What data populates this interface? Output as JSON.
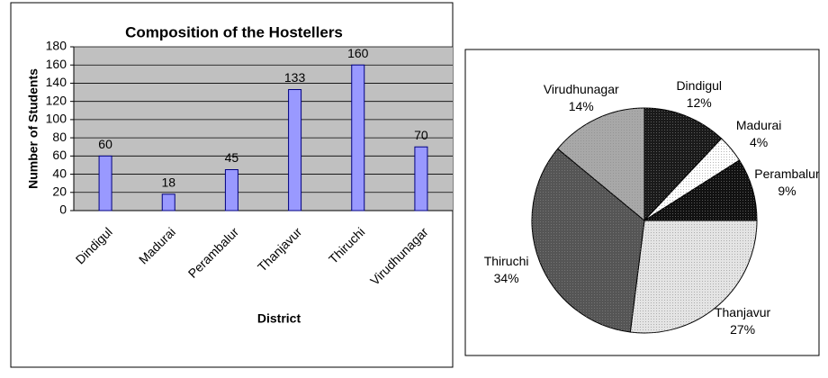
{
  "chart_data": [
    {
      "type": "bar",
      "title": "Composition of the Hostellers",
      "x_label": "District",
      "y_label": "Number of Students",
      "categories": [
        "Dindigul",
        "Madurai",
        "Perambalur",
        "Thanjavur",
        "Thiruchi",
        "Virudhunagar"
      ],
      "values": [
        60,
        18,
        45,
        133,
        160,
        70
      ],
      "color": "#9999ff",
      "ylim": [
        0,
        180
      ],
      "yticks": [
        0,
        20,
        40,
        60,
        80,
        100,
        120,
        140,
        160,
        180
      ],
      "grid": true
    },
    {
      "type": "pie",
      "categories": [
        "Dindigul",
        "Madurai",
        "Perambalur",
        "Thanjavur",
        "Thiruchi",
        "Virudhunagar"
      ],
      "values": [
        12,
        4,
        9,
        27,
        34,
        14
      ],
      "value_labels": [
        "12%",
        "4%",
        "9%",
        "27%",
        "34%",
        "14%"
      ],
      "colors": [
        "#1a1a1a",
        "#ffffff",
        "#111111",
        "#e4e4e4",
        "#555555",
        "#a8a8a8"
      ]
    }
  ]
}
